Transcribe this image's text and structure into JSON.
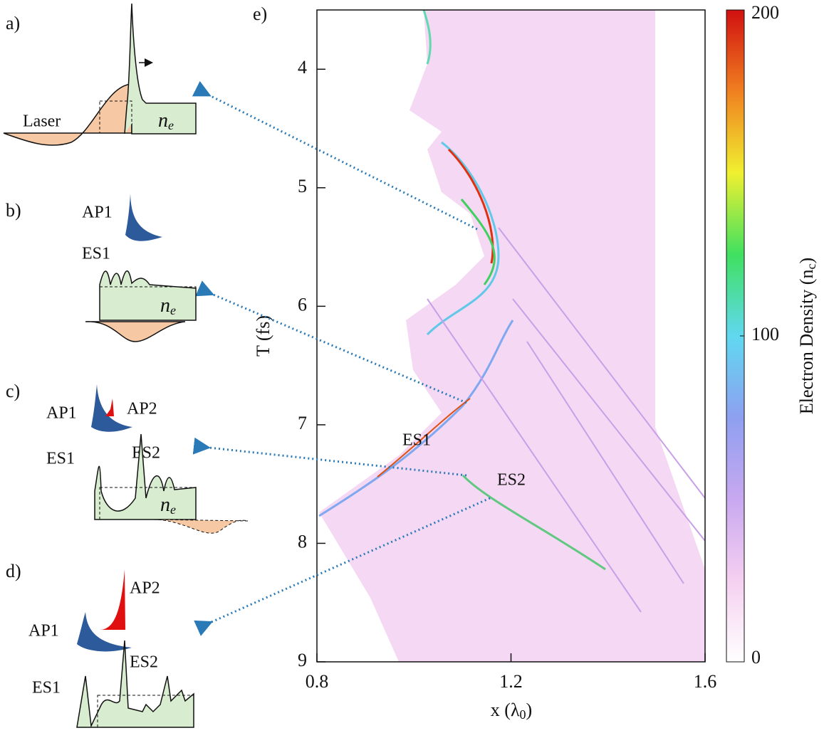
{
  "chart_data": {
    "type": "heatmap",
    "panel_label": "e)",
    "xlabel": {
      "main": "x (λ",
      "sub": "0",
      "end": ")"
    },
    "ylabel": "T (fs)",
    "xlim": [
      0.8,
      1.6
    ],
    "xticks": [
      0.8,
      1.2,
      1.6
    ],
    "ylim": [
      3.5,
      9
    ],
    "yticks": [
      4,
      5,
      6,
      7,
      8,
      9
    ],
    "y_inverted": true,
    "colorbar": {
      "label": {
        "main": "Electron Density (n",
        "sub": "c",
        "end": ")"
      },
      "lim": [
        0,
        200
      ],
      "ticks": [
        0,
        100,
        200
      ],
      "colors": [
        "#ffffff",
        "#f5d0f0",
        "#c8a8f0",
        "#8ea0f0",
        "#60d8f0",
        "#40e060",
        "#f0f030",
        "#f08020",
        "#d01010"
      ]
    },
    "annotations": [
      "ES1",
      "ES2"
    ]
  },
  "panels": {
    "a": {
      "label": "a)",
      "laser": "Laser",
      "density": {
        "main": "n",
        "sub": "e"
      }
    },
    "b": {
      "label": "b)",
      "ap1": "AP1",
      "es1": "ES1",
      "density": {
        "main": "n",
        "sub": "e"
      }
    },
    "c": {
      "label": "c)",
      "ap1": "AP1",
      "ap2": "AP2",
      "es1": "ES1",
      "es2": "ES2",
      "density": {
        "main": "n",
        "sub": "e"
      }
    },
    "d": {
      "label": "d)",
      "ap1": "AP1",
      "ap2": "AP2",
      "es1": "ES1",
      "es2": "ES2"
    }
  }
}
